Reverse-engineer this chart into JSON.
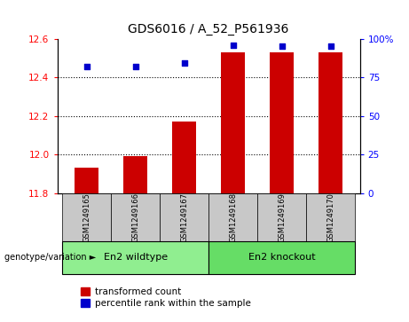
{
  "title": "GDS6016 / A_52_P561936",
  "samples": [
    "GSM1249165",
    "GSM1249166",
    "GSM1249167",
    "GSM1249168",
    "GSM1249169",
    "GSM1249170"
  ],
  "red_values": [
    11.93,
    11.99,
    12.17,
    12.53,
    12.53,
    12.53
  ],
  "blue_values": [
    82,
    82,
    84,
    96,
    95,
    95
  ],
  "ylim_left": [
    11.8,
    12.6
  ],
  "ylim_right": [
    0,
    100
  ],
  "yticks_left": [
    11.8,
    12.0,
    12.2,
    12.4,
    12.6
  ],
  "yticks_right": [
    0,
    25,
    50,
    75,
    100
  ],
  "ytick_labels_right": [
    "0",
    "25",
    "50",
    "75",
    "100%"
  ],
  "dotted_lines": [
    12.0,
    12.2,
    12.4
  ],
  "group1_label": "En2 wildtype",
  "group2_label": "En2 knockout",
  "group1_indices": [
    0,
    1,
    2
  ],
  "group2_indices": [
    3,
    4,
    5
  ],
  "genotype_label": "genotype/variation",
  "legend_red": "transformed count",
  "legend_blue": "percentile rank within the sample",
  "bar_color": "#CC0000",
  "dot_color": "#0000CC",
  "group1_color": "#90EE90",
  "group2_color": "#66DD66",
  "tick_bg_color": "#C8C8C8",
  "bar_width": 0.5,
  "bar_bottom": 11.8
}
